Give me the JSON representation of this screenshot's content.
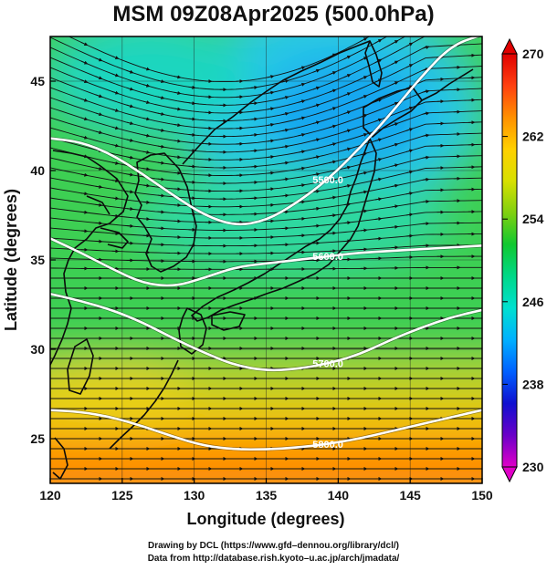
{
  "title": "MSM 09Z08Apr2025 (500.0hPa)",
  "axes": {
    "xlabel": "Longitude (degrees)",
    "ylabel": "Latitude  (degrees)",
    "xlim": [
      120,
      150
    ],
    "ylim": [
      22.5,
      47.5
    ],
    "xticks": [
      120,
      125,
      130,
      135,
      140,
      145,
      150
    ],
    "yticks": [
      25,
      30,
      35,
      40,
      45
    ]
  },
  "colorbar": {
    "min": 230,
    "max": 270,
    "labels": [
      230,
      238,
      246,
      254,
      262,
      270
    ],
    "colors": [
      "#e000c8",
      "#6a00c8",
      "#1010d0",
      "#0060ff",
      "#00b0ff",
      "#00e0d0",
      "#00d888",
      "#10c830",
      "#80d010",
      "#d8e000",
      "#ffd000",
      "#ff9000",
      "#ff4010",
      "#e00000"
    ]
  },
  "contours": [
    {
      "value": 5500,
      "label": "5500.0",
      "lat": [
        41.8,
        41.6,
        40.9,
        39.8,
        38.6,
        37.5,
        36.9,
        37.2,
        38.2,
        39.5,
        41.2,
        43.1,
        45.2,
        47.0,
        47.6
      ]
    },
    {
      "value": 5600,
      "label": "5600.0",
      "lat": [
        36.2,
        35.4,
        34.5,
        33.7,
        33.5,
        34.0,
        34.6,
        34.8,
        35.0,
        35.2,
        35.4,
        35.5,
        35.6,
        35.7,
        35.8
      ]
    },
    {
      "value": 5700,
      "label": "5700.0",
      "lat": [
        33.1,
        32.7,
        32.2,
        31.5,
        30.6,
        29.8,
        29.1,
        28.8,
        28.9,
        29.2,
        29.7,
        30.5,
        31.2,
        31.8,
        32.2
      ]
    },
    {
      "value": 5800,
      "label": "5800.0",
      "lat": [
        26.6,
        26.5,
        26.2,
        25.7,
        25.1,
        24.6,
        24.4,
        24.4,
        24.5,
        24.7,
        25.0,
        25.4,
        25.8,
        26.2,
        26.6
      ]
    }
  ],
  "credits": {
    "line1": "Drawing by DCL (https://www.gfd–dennou.org/library/dcl/)",
    "line2": "Data from http://database.rish.kyoto–u.ac.jp/arch/jmadata/"
  }
}
